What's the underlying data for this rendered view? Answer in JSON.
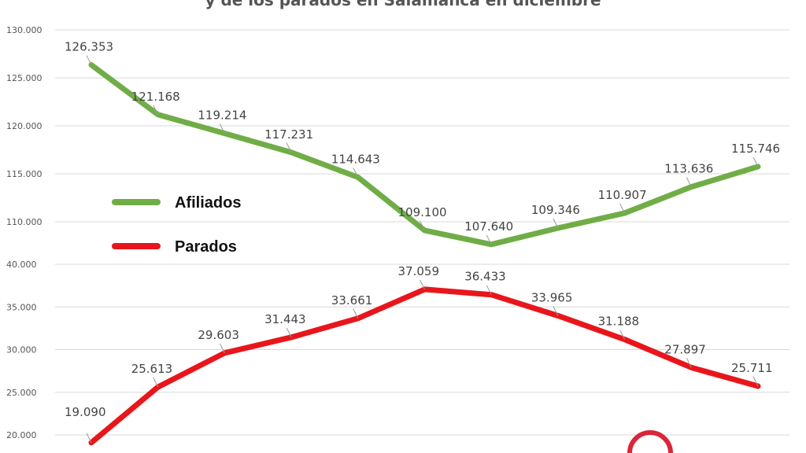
{
  "chart_data": {
    "type": "line",
    "title": "y de los parados en Salamanca en diciembre",
    "broken_axis": true,
    "grid": true,
    "legend_position": "left",
    "panels": [
      {
        "ylim": [
          110000,
          130000
        ],
        "ticks": [
          "130.000",
          "125.000",
          "120.000",
          "115.000",
          "110.000"
        ],
        "tick_values": [
          130000,
          125000,
          120000,
          115000,
          110000
        ]
      },
      {
        "ylim": [
          20000,
          40000
        ],
        "ticks": [
          "40.000",
          "35.000",
          "30.000",
          "25.000",
          "20.000"
        ],
        "tick_values": [
          40000,
          35000,
          30000,
          25000,
          20000
        ]
      }
    ],
    "series": [
      {
        "name": "Afiliados",
        "color": "#70ad47",
        "panel": 0,
        "values": [
          126353,
          121168,
          119214,
          117231,
          114643,
          109100,
          107640,
          109346,
          110907,
          113636,
          115746
        ],
        "labels": [
          "126.353",
          "121.168",
          "119.214",
          "117.231",
          "114.643",
          "109.100",
          "107.640",
          "109.346",
          "110.907",
          "113.636",
          "115.746"
        ]
      },
      {
        "name": "Parados",
        "color": "#e8161b",
        "panel": 1,
        "values": [
          19090,
          25613,
          29603,
          31443,
          33661,
          37059,
          36433,
          33965,
          31188,
          27897,
          25711
        ],
        "labels": [
          "19.090",
          "25.613",
          "29.603",
          "31.443",
          "33.661",
          "37.059",
          "36.433",
          "33.965",
          "31.188",
          "27.897",
          "25.711"
        ]
      }
    ],
    "logo_color": "#d9263a"
  }
}
